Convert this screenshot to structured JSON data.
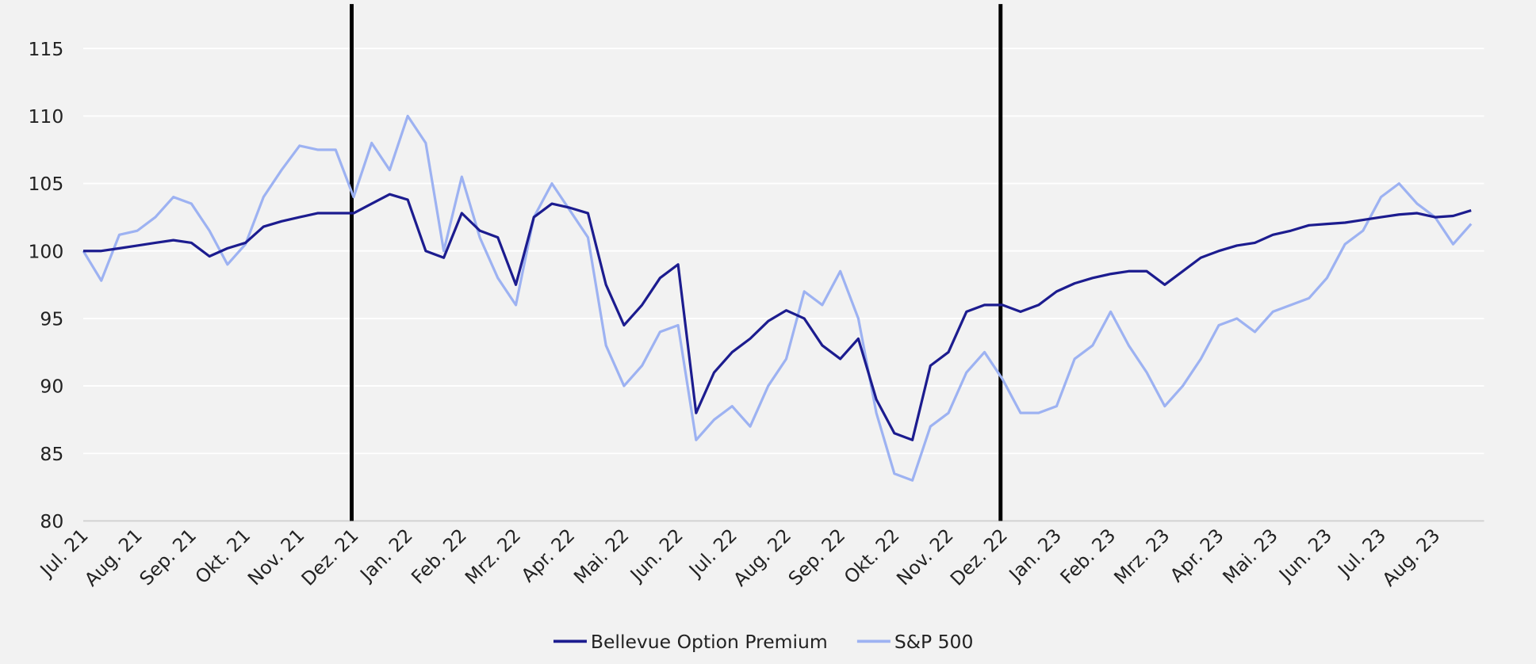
{
  "chart_data": {
    "type": "line",
    "categories": [
      "Jul. 21",
      null,
      null,
      "Aug. 21",
      null,
      null,
      "Sep. 21",
      null,
      null,
      "Okt. 21",
      null,
      null,
      "Nov. 21",
      null,
      null,
      "Dez. 21",
      null,
      null,
      "Jan. 22",
      null,
      null,
      "Feb. 22",
      null,
      null,
      "Mrz. 22",
      null,
      null,
      "Apr. 22",
      null,
      null,
      "Mai. 22",
      null,
      null,
      "Jun. 22",
      null,
      null,
      "Jul. 22",
      null,
      null,
      "Aug. 22",
      null,
      null,
      "Sep. 22",
      null,
      null,
      "Okt. 22",
      null,
      null,
      "Nov. 22",
      null,
      null,
      "Dez. 22",
      null,
      null,
      "Jan. 23",
      null,
      null,
      "Feb. 23",
      null,
      null,
      "Mrz. 23",
      null,
      null,
      "Apr. 23",
      null,
      null,
      "Mai. 23",
      null,
      null,
      "Jun. 23",
      null,
      null,
      "Jul. 23",
      null,
      null,
      "Aug. 23",
      null,
      null
    ],
    "series": [
      {
        "name": "Bellevue Option Premium",
        "color": "#1c1c8f",
        "values": [
          100,
          100,
          100.2,
          100.4,
          100.6,
          100.8,
          100.6,
          99.6,
          100.2,
          100.6,
          101.8,
          102.2,
          102.5,
          102.8,
          102.8,
          102.8,
          103.5,
          104.2,
          103.8,
          100,
          99.5,
          102.8,
          101.5,
          101,
          97.5,
          102.5,
          103.5,
          103.2,
          102.8,
          97.5,
          94.5,
          96,
          98,
          99,
          88,
          91,
          92.5,
          93.5,
          94.8,
          95.6,
          95,
          93,
          92,
          93.5,
          89,
          86.5,
          86,
          91.5,
          92.5,
          95.5,
          96,
          96,
          95.5,
          96,
          97,
          97.6,
          98,
          98.3,
          98.5,
          98.5,
          97.5,
          98.5,
          99.5,
          100,
          100.4,
          100.6,
          101.2,
          101.5,
          101.9,
          102,
          102.1,
          102.3,
          102.5,
          102.7,
          102.8,
          102.5,
          102.6,
          103
        ]
      },
      {
        "name": "S&P 500",
        "color": "#9db2f2",
        "values": [
          100,
          97.8,
          101.2,
          101.5,
          102.5,
          104,
          103.5,
          101.5,
          99,
          100.5,
          104,
          106,
          107.8,
          107.5,
          107.5,
          104,
          108,
          106,
          110,
          108,
          100,
          105.5,
          101,
          98,
          96,
          102.5,
          105,
          103,
          101,
          93,
          90,
          91.5,
          94,
          94.5,
          86,
          87.5,
          88.5,
          87,
          90,
          92,
          97,
          96,
          98.5,
          95,
          88,
          83.5,
          83,
          87,
          88,
          91,
          92.5,
          90.5,
          88,
          88,
          88.5,
          92,
          93,
          95.5,
          93,
          91,
          88.5,
          90,
          92,
          94.5,
          95,
          94,
          95.5,
          96,
          96.5,
          98,
          100.5,
          101.5,
          104,
          105,
          103.5,
          102.5,
          100.5,
          102
        ]
      }
    ],
    "vertical_lines": [
      "Dez. 21",
      "Dez. 22"
    ],
    "ylim": [
      80,
      118
    ],
    "yticks": [
      80,
      85,
      90,
      95,
      100,
      105,
      110,
      115
    ],
    "grid": true,
    "legend": "bottom"
  }
}
